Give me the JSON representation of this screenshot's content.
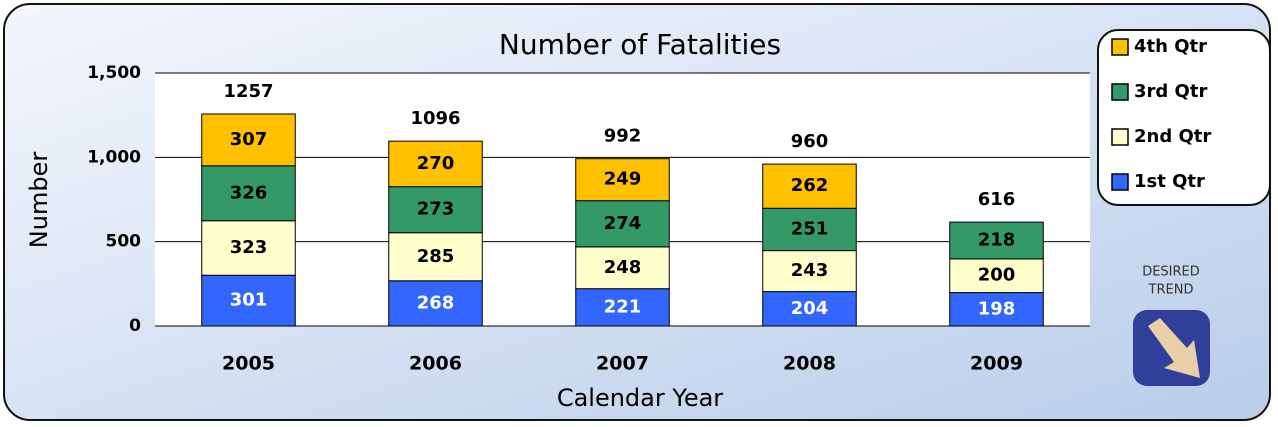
{
  "chart_data": {
    "type": "stacked_bar",
    "title": "Number of Fatalities",
    "x_label": "Calendar Year",
    "y_label": "Number",
    "categories": [
      "2005",
      "2006",
      "2007",
      "2008",
      "2009"
    ],
    "series": [
      {
        "name": "1st Qtr",
        "color": "#3366ff",
        "values": [
          301,
          268,
          221,
          204,
          198
        ]
      },
      {
        "name": "2nd Qtr",
        "color": "#ffffcc",
        "values": [
          323,
          285,
          248,
          243,
          200
        ]
      },
      {
        "name": "3rd Qtr",
        "color": "#339966",
        "values": [
          326,
          273,
          274,
          251,
          218
        ]
      },
      {
        "name": "4th Qtr",
        "color": "#ffc000",
        "values": [
          307,
          270,
          249,
          262,
          null
        ]
      }
    ],
    "totals": [
      1257,
      1096,
      992,
      960,
      616
    ],
    "ylim": [
      0,
      1500
    ],
    "yticks": [
      0,
      500,
      {
        "value": 1000,
        "label": "1,000"
      },
      {
        "value": 1500,
        "label": "1,500"
      }
    ],
    "grid": true,
    "legend": "top-right",
    "annotations": [
      "DESIRED",
      "TREND"
    ]
  }
}
